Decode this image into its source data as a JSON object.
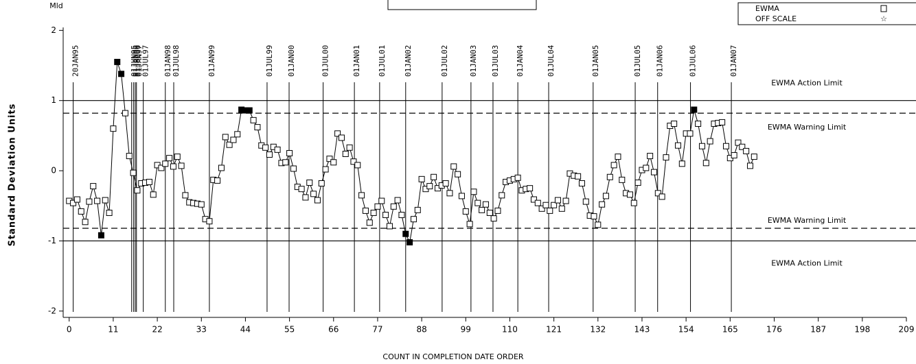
{
  "chart_data": {
    "type": "line",
    "y_unit_label": "Mld",
    "ylabel": "Standard Deviation Units",
    "xlabel": "COUNT IN COMPLETION DATE ORDER",
    "xlim": [
      -1.5,
      209
    ],
    "ylim": [
      -2.09,
      2.14
    ],
    "xticks": [
      0,
      11,
      22,
      33,
      44,
      55,
      66,
      77,
      88,
      99,
      110,
      121,
      132,
      143,
      154,
      165,
      176,
      187,
      198,
      209
    ],
    "yticks": [
      2,
      1,
      0,
      -1,
      -2
    ],
    "legend_position": "upper right",
    "off_scale_label": "OFF SCALE",
    "series": [
      {
        "name": "EWMA",
        "color": "#000000",
        "values": [
          -0.43,
          -0.46,
          -0.41,
          -0.58,
          -0.73,
          -0.44,
          -0.22,
          -0.43,
          -0.92,
          -0.42,
          -0.6,
          0.6,
          1.55,
          1.38,
          0.82,
          0.21,
          -0.03,
          -0.28,
          -0.18,
          -0.17,
          -0.16,
          -0.34,
          0.08,
          0.04,
          0.1,
          0.18,
          0.06,
          0.2,
          0.07,
          -0.35,
          -0.45,
          -0.46,
          -0.47,
          -0.48,
          -0.69,
          -0.72,
          -0.13,
          -0.14,
          0.04,
          0.48,
          0.37,
          0.44,
          0.52,
          0.87,
          0.86,
          0.86,
          0.72,
          0.62,
          0.36,
          0.33,
          0.23,
          0.34,
          0.3,
          0.11,
          0.12,
          0.25,
          0.03,
          -0.23,
          -0.26,
          -0.38,
          -0.17,
          -0.33,
          -0.42,
          -0.18,
          0.02,
          0.17,
          0.12,
          0.53,
          0.47,
          0.24,
          0.33,
          0.13,
          0.08,
          -0.35,
          -0.57,
          -0.74,
          -0.6,
          -0.51,
          -0.43,
          -0.63,
          -0.79,
          -0.51,
          -0.42,
          -0.63,
          -0.9,
          -1.02,
          -0.69,
          -0.56,
          -0.12,
          -0.26,
          -0.22,
          -0.09,
          -0.25,
          -0.21,
          -0.18,
          -0.32,
          0.06,
          -0.05,
          -0.36,
          -0.58,
          -0.76,
          -0.3,
          -0.46,
          -0.56,
          -0.48,
          -0.6,
          -0.68,
          -0.57,
          -0.35,
          -0.16,
          -0.14,
          -0.12,
          -0.1,
          -0.28,
          -0.26,
          -0.25,
          -0.41,
          -0.46,
          -0.54,
          -0.49,
          -0.57,
          -0.49,
          -0.42,
          -0.54,
          -0.43,
          -0.04,
          -0.07,
          -0.08,
          -0.18,
          -0.44,
          -0.64,
          -0.65,
          -0.77,
          -0.48,
          -0.36,
          -0.09,
          0.08,
          0.2,
          -0.13,
          -0.32,
          -0.34,
          -0.46,
          -0.17,
          0.01,
          0.04,
          0.21,
          -0.02,
          -0.32,
          -0.37,
          0.19,
          0.64,
          0.67,
          0.36,
          0.1,
          0.53,
          0.53,
          0.87,
          0.67,
          0.35,
          0.11,
          0.42,
          0.67,
          0.68,
          0.69,
          0.35,
          0.18,
          0.22,
          0.4,
          0.34,
          0.28,
          0.07,
          0.2
        ]
      }
    ],
    "reference_lines": [
      {
        "label": "EWMA Action Limit",
        "value": 1,
        "style": "solid"
      },
      {
        "label": "EWMA Warning Limit",
        "value": 0.82,
        "style": "dashed"
      },
      {
        "label": "EWMA Warning Limit",
        "value": -0.82,
        "style": "dashed"
      },
      {
        "label": "EWMA Action Limit",
        "value": -1,
        "style": "solid"
      }
    ],
    "date_lines": {
      "labels": [
        "20JAN95",
        "01JUN95",
        "01JAN96",
        "01JUL96",
        "01JAN97",
        "01JUL97",
        "01JAN98",
        "01JUL98",
        "01JAN99",
        "01JUL99",
        "01JAN00",
        "01JUL00",
        "01JAN01",
        "01JUL01",
        "01JAN02",
        "01JUL02",
        "01JAN03",
        "01JUL03",
        "01JAN04",
        "01JUL04",
        "01JAN05",
        "01JUL05",
        "01JAN06",
        "01JUL06",
        "01JAN07"
      ],
      "x": [
        1,
        15.6,
        16.1,
        16.5,
        16.8,
        18.5,
        24,
        26.1,
        35,
        49.4,
        54.9,
        63.4,
        71.2,
        77.5,
        84,
        93.1,
        100.3,
        105.8,
        112,
        119.7,
        130.8,
        141.3,
        146.9,
        155.1,
        165.3
      ]
    }
  }
}
